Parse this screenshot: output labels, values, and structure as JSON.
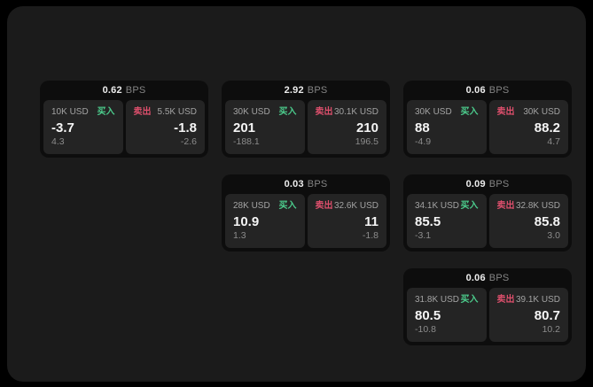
{
  "labels": {
    "bps_unit": "BPS",
    "buy": "买入",
    "sell": "卖出"
  },
  "colors": {
    "buy": "#4ccd8d",
    "sell": "#dd4f6c",
    "page_bg": "#1b1b1b",
    "card_bg": "#0d0d0d",
    "panel_bg": "#242424"
  },
  "cards": [
    {
      "bps": "0.62",
      "buy": {
        "amount": "10K USD",
        "value": "-3.7",
        "delta": "4.3"
      },
      "sell": {
        "amount": "5.5K USD",
        "value": "-1.8",
        "delta": "-2.6"
      }
    },
    {
      "bps": "2.92",
      "buy": {
        "amount": "30K USD",
        "value": "201",
        "delta": "-188.1"
      },
      "sell": {
        "amount": "30.1K USD",
        "value": "210",
        "delta": "196.5"
      }
    },
    {
      "bps": "0.06",
      "buy": {
        "amount": "30K USD",
        "value": "88",
        "delta": "-4.9"
      },
      "sell": {
        "amount": "30K USD",
        "value": "88.2",
        "delta": "4.7"
      }
    },
    {
      "bps": "0.03",
      "buy": {
        "amount": "28K USD",
        "value": "10.9",
        "delta": "1.3"
      },
      "sell": {
        "amount": "32.6K USD",
        "value": "11",
        "delta": "-1.8"
      }
    },
    {
      "bps": "0.09",
      "buy": {
        "amount": "34.1K USD",
        "value": "85.5",
        "delta": "-3.1"
      },
      "sell": {
        "amount": "32.8K USD",
        "value": "85.8",
        "delta": "3.0"
      }
    },
    {
      "bps": "0.06",
      "buy": {
        "amount": "31.8K USD",
        "value": "80.5",
        "delta": "-10.8"
      },
      "sell": {
        "amount": "39.1K USD",
        "value": "80.7",
        "delta": "10.2"
      }
    }
  ]
}
